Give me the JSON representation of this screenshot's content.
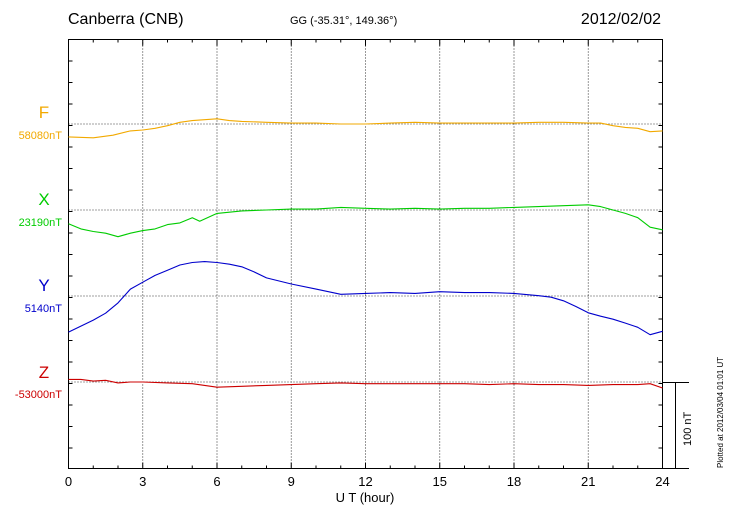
{
  "header": {
    "station": "Canberra (CNB)",
    "coords": "GG (-35.31°, 149.36°)",
    "date": "2012/02/02"
  },
  "footer": {
    "plotted": "Plotted at 2012/03/04 01:01 UT"
  },
  "chart_data": {
    "type": "line",
    "title": "Canberra (CNB)",
    "xlabel": "U T (hour)",
    "xlim": [
      0,
      24
    ],
    "xticks": [
      "0",
      "3",
      "6",
      "9",
      "12",
      "15",
      "18",
      "21",
      "24"
    ],
    "grid": true,
    "scale_bar": {
      "label": "100 nT",
      "value_nT": 100
    },
    "series": [
      {
        "name": "F",
        "baseline_label": "58080nT",
        "color": "#f2a900",
        "x": [
          0,
          1,
          1.8,
          2.5,
          3,
          3.5,
          4,
          4.5,
          5,
          5.5,
          6,
          6.5,
          7,
          8,
          9,
          10,
          11,
          12,
          13,
          14,
          15,
          16,
          17,
          18,
          19,
          20,
          21,
          21.5,
          22,
          22.5,
          23,
          23.5,
          24
        ],
        "y": [
          -15,
          -16,
          -13,
          -8,
          -7,
          -5,
          -2,
          2,
          4,
          5,
          6,
          4,
          3,
          2,
          1,
          1,
          0,
          0,
          1,
          2,
          1,
          1,
          1,
          1,
          2,
          2,
          1,
          1,
          -2,
          -4,
          -5,
          -9,
          -8
        ]
      },
      {
        "name": "X",
        "baseline_label": "23190nT",
        "color": "#00cc00",
        "x": [
          0,
          0.5,
          1,
          1.5,
          2,
          2.5,
          3,
          3.5,
          4,
          4.5,
          5,
          5.3,
          6,
          7,
          8,
          9,
          10,
          11,
          12,
          13,
          14,
          15,
          16,
          17,
          18,
          19,
          20,
          21,
          21.5,
          22,
          22.5,
          23,
          23.5,
          24
        ],
        "y": [
          -16,
          -22,
          -25,
          -27,
          -31,
          -27,
          -24,
          -22,
          -17,
          -15,
          -9,
          -13,
          -4,
          -1,
          0,
          1,
          1,
          3,
          2,
          1,
          2,
          1,
          2,
          2,
          3,
          4,
          5,
          6,
          4,
          0,
          -4,
          -9,
          -20,
          -23
        ]
      },
      {
        "name": "Y",
        "baseline_label": "5140nT",
        "color": "#0000cc",
        "x": [
          0,
          0.5,
          1,
          1.5,
          2,
          2.5,
          3,
          3.5,
          4,
          4.5,
          5,
          5.5,
          6,
          6.5,
          7,
          7.5,
          8,
          9,
          10,
          10.5,
          11,
          12,
          13,
          14,
          15,
          16,
          17,
          18,
          19,
          19.5,
          20,
          20.5,
          21,
          21.5,
          22,
          22.5,
          23,
          23.5,
          24
        ],
        "y": [
          -42,
          -35,
          -28,
          -20,
          -8,
          8,
          16,
          24,
          30,
          36,
          39,
          40,
          39,
          37,
          34,
          28,
          21,
          14,
          8,
          5,
          2,
          3,
          4,
          3,
          5,
          4,
          4,
          3,
          0,
          -3,
          -7,
          -12,
          -18,
          -22,
          -27,
          -33,
          -38,
          -45,
          -41
        ]
      },
      {
        "name": "Z",
        "baseline_label": "-53000nT",
        "color": "#cc0000",
        "x": [
          0,
          0.5,
          1,
          1.5,
          2,
          2.5,
          3,
          4,
          5,
          6,
          7,
          8,
          9,
          10,
          11,
          12,
          13,
          14,
          15,
          16,
          17,
          18,
          19,
          20,
          21,
          22,
          23,
          23.5,
          24
        ],
        "y": [
          3,
          3,
          1,
          2,
          -1,
          0,
          0,
          -1,
          -2,
          -6,
          -5,
          -4,
          -3,
          -2,
          -1,
          -2,
          -2,
          -2,
          -2,
          -2,
          -3,
          -2,
          -3,
          -3,
          -4,
          -3,
          -3,
          -2,
          -7
        ]
      }
    ]
  }
}
